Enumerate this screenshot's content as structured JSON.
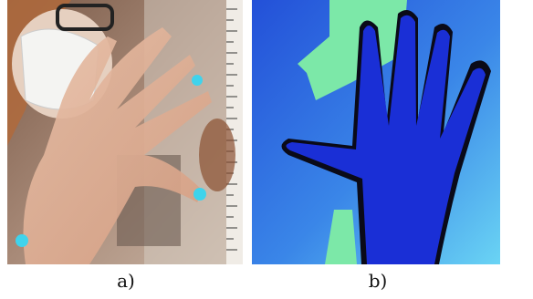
{
  "figure": {
    "panels": [
      {
        "caption": "a)",
        "content": "photo-hand-with-markers",
        "marker_color": "#3fd3ec"
      },
      {
        "caption": "b)",
        "content": "depth-map-hand-segmentation",
        "hand_color": "#1a2fd6",
        "background_colors": [
          "#2b6be0",
          "#5ec8f0",
          "#7ce8a8"
        ]
      }
    ]
  }
}
